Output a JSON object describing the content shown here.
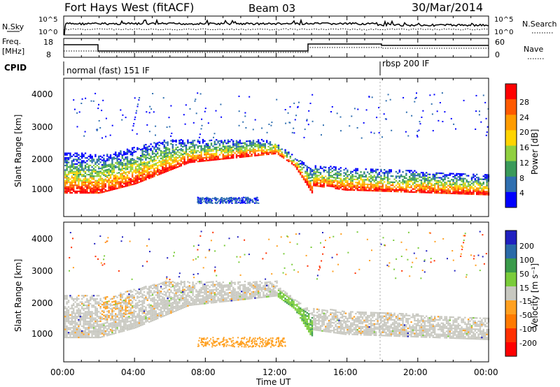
{
  "header": {
    "title": "Fort Hays West (fitACF)",
    "beam": "Beam 03",
    "date": "30/Mar/2014"
  },
  "top_panels": {
    "nsky_label": "N.Sky",
    "nsearch_label": "N.Search",
    "nsky_ticks": [
      "10^5",
      "10^0"
    ],
    "nsearch_ticks": [
      "10^5",
      "10^0"
    ],
    "freq_label_1": "Freq.",
    "freq_label_2": "[MHz]",
    "freq_ticks": [
      "18",
      "8"
    ],
    "nave_label": "Nave",
    "nave_ticks": [
      "60",
      "0"
    ],
    "cpid_label": "CPID",
    "cpid_mode_1": "normal (fast) 151 IF",
    "cpid_mode_2": "rbsp 200 IF"
  },
  "chart_data": [
    {
      "type": "heatmap",
      "name": "Power",
      "ylabel": "Slant Range [km]",
      "xlabel": "Time UT",
      "yticks": [
        "4000",
        "3000",
        "2000",
        "1000"
      ],
      "colorbar_label": "Power [dB]",
      "colorbar_ticks": [
        "28",
        "24",
        "20",
        "16",
        "12",
        "8",
        "4"
      ],
      "colors": [
        "#ff0000",
        "#ff5a00",
        "#ff9c00",
        "#ffd400",
        "#90d040",
        "#3a9a5a",
        "#2f6fb0",
        "#0000ff"
      ]
    },
    {
      "type": "heatmap",
      "name": "Velocity",
      "ylabel": "Slant Range [km]",
      "xlabel": "Time UT",
      "yticks": [
        "4000",
        "3000",
        "2000",
        "1000"
      ],
      "colorbar_label": "Velocity [m s⁻¹]",
      "colorbar_ticks": [
        "200",
        "100",
        "50",
        "15",
        "-15",
        "-50",
        "-100",
        "-200"
      ],
      "colors": [
        "#2020c0",
        "#2a6aa8",
        "#3a9a4a",
        "#7acc3a",
        "#c8c8c0",
        "#ffa020",
        "#ff7a00",
        "#ff3000",
        "#ff0000"
      ]
    }
  ],
  "x_axis": {
    "ticks": [
      "00:00",
      "04:00",
      "08:00",
      "12:00",
      "16:00",
      "20:00",
      "00:00"
    ],
    "label": "Time UT"
  }
}
